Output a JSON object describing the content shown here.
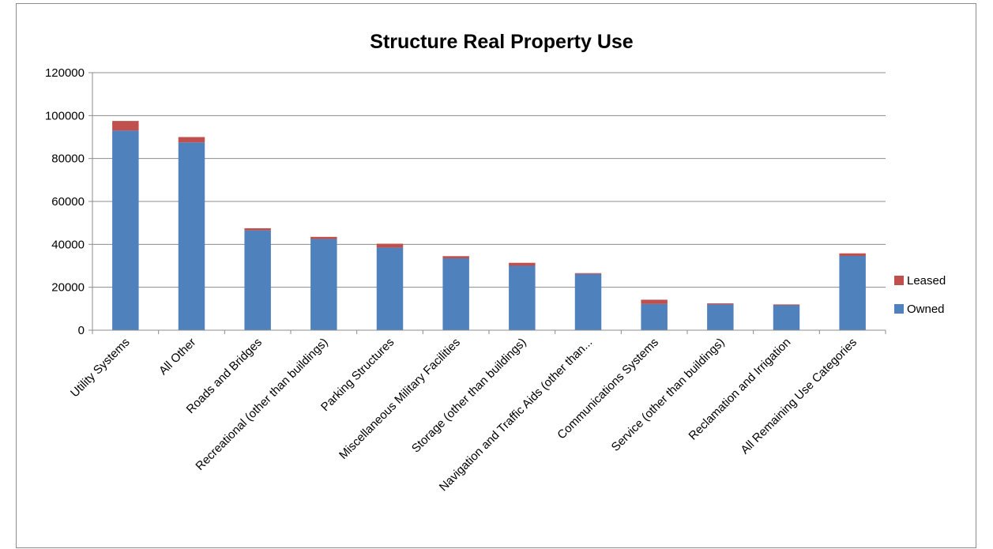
{
  "chart_data": {
    "type": "bar",
    "stacked": true,
    "title": "Structure Real Property Use",
    "xlabel": "",
    "ylabel": "",
    "ylim": [
      0,
      120000
    ],
    "yticks": [
      "0",
      "20000",
      "40000",
      "60000",
      "80000",
      "100000",
      "120000"
    ],
    "grid": true,
    "legend_position": "right",
    "categories": [
      "Utility Systems",
      "All Other",
      "Roads and Bridges",
      "Recreational (other than buildings)",
      "Parking Structures",
      "Miscellaneous Military Facilities",
      "Storage (other than buildings)",
      "Navigation and Traffic Aids (other than...",
      "Communications Systems",
      "Service (other than buildings)",
      "Reclamation and Irrigation",
      "All Remaining Use Categories"
    ],
    "series": [
      {
        "name": "Owned",
        "color": "#4f81bd",
        "values": [
          93000,
          87500,
          46500,
          42500,
          38500,
          33500,
          30000,
          26200,
          12200,
          12000,
          11600,
          34600
        ]
      },
      {
        "name": "Leased",
        "color": "#c0504d",
        "values": [
          4500,
          2500,
          1000,
          1000,
          1800,
          1000,
          1400,
          400,
          2000,
          500,
          400,
          1200
        ]
      }
    ]
  }
}
